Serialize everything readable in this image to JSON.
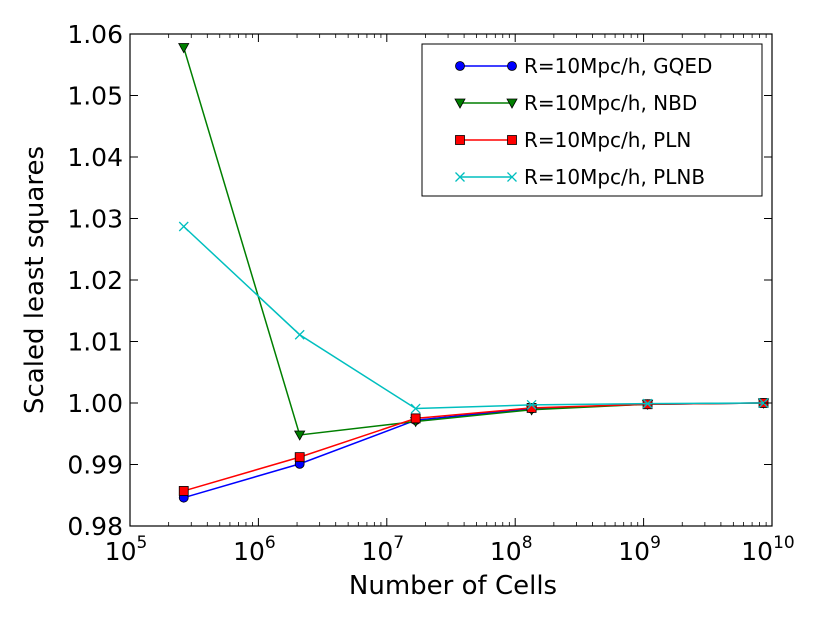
{
  "chart_data": {
    "type": "line",
    "title": "",
    "xlabel": "Number of Cells",
    "ylabel": "Scaled least squares",
    "xscale": "log",
    "xlim": [
      100000,
      10000000000
    ],
    "ylim": [
      0.98,
      1.06
    ],
    "x_ticks": [
      {
        "value": 100000,
        "base": "10",
        "exp": "5"
      },
      {
        "value": 1000000,
        "base": "10",
        "exp": "6"
      },
      {
        "value": 10000000,
        "base": "10",
        "exp": "7"
      },
      {
        "value": 100000000,
        "base": "10",
        "exp": "8"
      },
      {
        "value": 1000000000,
        "base": "10",
        "exp": "9"
      },
      {
        "value": 10000000000,
        "base": "10",
        "exp": "10"
      }
    ],
    "y_ticks": [
      {
        "value": 0.98,
        "label": "0.98"
      },
      {
        "value": 0.99,
        "label": "0.99"
      },
      {
        "value": 1.0,
        "label": "1.00"
      },
      {
        "value": 1.01,
        "label": "1.01"
      },
      {
        "value": 1.02,
        "label": "1.02"
      },
      {
        "value": 1.03,
        "label": "1.03"
      },
      {
        "value": 1.04,
        "label": "1.04"
      },
      {
        "value": 1.05,
        "label": "1.05"
      },
      {
        "value": 1.06,
        "label": "1.06"
      }
    ],
    "x": [
      262144,
      2097152,
      16777216,
      134217728,
      1073741824,
      8589934592
    ],
    "legend_position": "top-right",
    "grid": false,
    "series": [
      {
        "name": "R=10Mpc/h, GQED",
        "color": "#0000ff",
        "marker": "circle",
        "values": [
          0.9846,
          0.9901,
          0.9972,
          0.9991,
          0.9998,
          1.0
        ]
      },
      {
        "name": "R=10Mpc/h, NBD",
        "color": "#007f00",
        "marker": "triangle-down",
        "values": [
          1.0578,
          0.9948,
          0.997,
          0.9989,
          0.9998,
          1.0
        ]
      },
      {
        "name": "R=10Mpc/h, PLN",
        "color": "#ff0000",
        "marker": "square",
        "values": [
          0.9857,
          0.9912,
          0.9975,
          0.9992,
          0.9998,
          1.0
        ]
      },
      {
        "name": "R=10Mpc/h, PLNB",
        "color": "#00bfbf",
        "marker": "x",
        "values": [
          1.0287,
          1.0111,
          0.9991,
          0.9997,
          0.9999,
          1.0
        ]
      }
    ]
  }
}
